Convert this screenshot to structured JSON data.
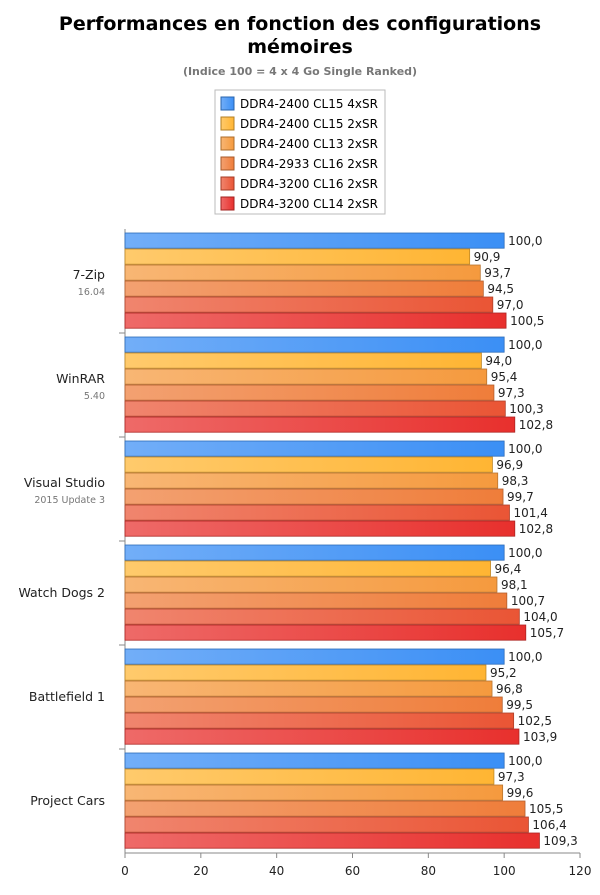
{
  "chart_data": {
    "type": "bar",
    "orientation": "horizontal",
    "title": "Performances en fonction des configurations mémoires",
    "title_lines": [
      "Performances en fonction des configurations",
      "mémoires"
    ],
    "subtitle": "(Indice 100 = 4 x 4 Go Single Ranked)",
    "xlim": [
      0,
      120
    ],
    "xticks": [
      0,
      20,
      40,
      60,
      80,
      100,
      120
    ],
    "xtick_labels": [
      "0",
      "20",
      "40",
      "60",
      "80",
      "100",
      "120"
    ],
    "legend_position": "top-center",
    "categories": [
      {
        "name": "7-Zip",
        "sub": "16.04"
      },
      {
        "name": "WinRAR",
        "sub": "5.40"
      },
      {
        "name": "Visual Studio",
        "sub": "2015 Update 3"
      },
      {
        "name": "Watch Dogs 2",
        "sub": ""
      },
      {
        "name": "Battlefield 1",
        "sub": ""
      },
      {
        "name": "Project Cars",
        "sub": ""
      }
    ],
    "series": [
      {
        "name": "DDR4-2400 CL15 4xSR",
        "color": "#3b8ff5",
        "values": [
          100.0,
          100.0,
          100.0,
          100.0,
          100.0,
          100.0
        ],
        "labels": [
          "100,0",
          "100,0",
          "100,0",
          "100,0",
          "100,0",
          "100,0"
        ]
      },
      {
        "name": "DDR4-2400 CL15 2xSR",
        "color": "#ffb533",
        "values": [
          90.9,
          94.0,
          96.9,
          96.4,
          95.2,
          97.3
        ],
        "labels": [
          "90,9",
          "94,0",
          "96,9",
          "96,4",
          "95,2",
          "97,3"
        ]
      },
      {
        "name": "DDR4-2400 CL13 2xSR",
        "color": "#f59a3e",
        "values": [
          93.7,
          95.4,
          98.3,
          98.1,
          96.8,
          99.6
        ],
        "labels": [
          "93,7",
          "95,4",
          "98,3",
          "98,1",
          "96,8",
          "99,6"
        ]
      },
      {
        "name": "DDR4-2933 CL16 2xSR",
        "color": "#ef7d3a",
        "values": [
          94.5,
          97.3,
          99.7,
          100.7,
          99.5,
          105.5
        ],
        "labels": [
          "94,5",
          "97,3",
          "99,7",
          "100,7",
          "99,5",
          "105,5"
        ]
      },
      {
        "name": "DDR4-3200 CL16 2xSR",
        "color": "#ea5535",
        "values": [
          97.0,
          100.3,
          101.4,
          104.0,
          102.5,
          106.4
        ],
        "labels": [
          "97,0",
          "100,3",
          "101,4",
          "104,0",
          "102,5",
          "106,4"
        ]
      },
      {
        "name": "DDR4-3200 CL14 2xSR",
        "color": "#e8302d",
        "values": [
          100.5,
          102.8,
          102.8,
          105.7,
          103.9,
          109.3
        ],
        "labels": [
          "100,5",
          "102,8",
          "102,8",
          "105,7",
          "103,9",
          "109,3"
        ]
      }
    ]
  }
}
